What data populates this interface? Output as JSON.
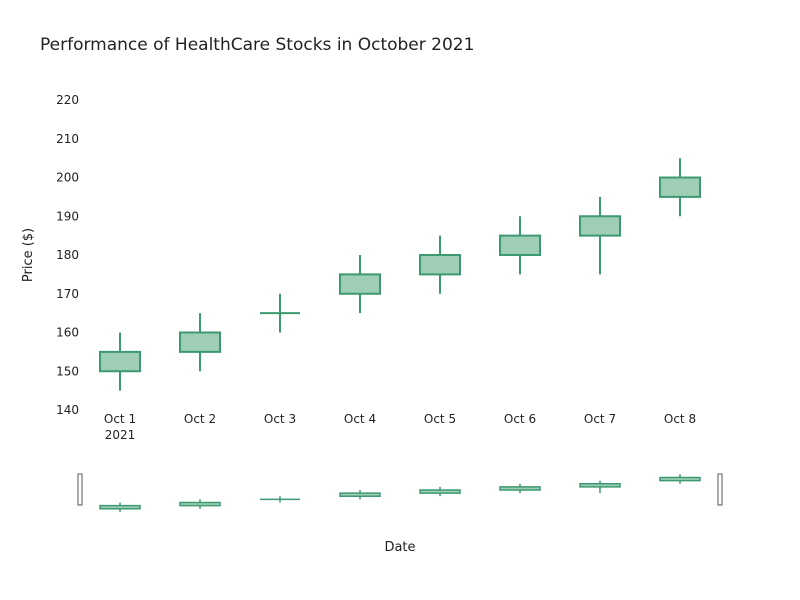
{
  "chart_data": {
    "type": "candlestick",
    "title": "Performance of HealthCare Stocks in October 2021",
    "xlabel": "Date",
    "ylabel": "Price ($)",
    "ylim": [
      140,
      222
    ],
    "yticks": [
      140,
      150,
      160,
      170,
      180,
      190,
      200,
      210,
      220
    ],
    "categories": [
      "Oct 1",
      "Oct 2",
      "Oct 3",
      "Oct 4",
      "Oct 5",
      "Oct 6",
      "Oct 7",
      "Oct 8"
    ],
    "year_label": "2021",
    "ohlc": [
      {
        "open": 150,
        "high": 160,
        "low": 145,
        "close": 155
      },
      {
        "open": 155,
        "high": 165,
        "low": 150,
        "close": 160
      },
      {
        "open": 165,
        "high": 170,
        "low": 160,
        "close": 165
      },
      {
        "open": 170,
        "high": 180,
        "low": 165,
        "close": 175
      },
      {
        "open": 175,
        "high": 185,
        "low": 170,
        "close": 180
      },
      {
        "open": 180,
        "high": 190,
        "low": 175,
        "close": 185
      },
      {
        "open": 185,
        "high": 195,
        "low": 175,
        "close": 190
      },
      {
        "open": 195,
        "high": 205,
        "low": 190,
        "close": 200
      }
    ],
    "increasing_color": "#3d9970",
    "increasing_fill": "#9ecfb6",
    "grid": false,
    "range_slider": true
  }
}
